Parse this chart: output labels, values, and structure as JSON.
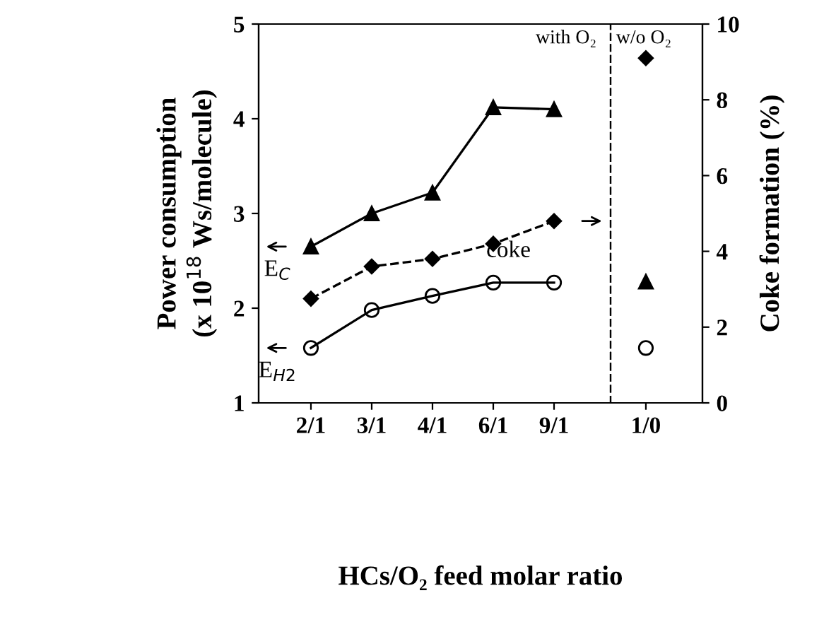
{
  "chart_data": [
    {
      "type": "line",
      "xlabel": "HCs/O₂ feed molar ratio",
      "ylabel": "Power consumption\n(x 10$^{18}$ Ws/molecule)",
      "categories": [
        "2/1",
        "3/1",
        "4/1",
        "6/1",
        "9/1"
      ],
      "ylim": [
        1,
        5
      ],
      "yticks": [
        1,
        2,
        3,
        4,
        5
      ],
      "y2lim": [
        0,
        10
      ],
      "series": [
        {
          "name": "E$_{C}$",
          "color": "#000000",
          "marker": "triangle",
          "line_style": "solid",
          "values": [
            2.65,
            3.0,
            3.22,
            4.12,
            4.1
          ]
        },
        {
          "name": "E$_{H2}$",
          "color": "#000000",
          "marker": "circle",
          "line_style": "solid",
          "values": [
            1.58,
            1.98,
            2.13,
            2.27,
            2.27
          ]
        },
        {
          "name": "coke",
          "color": "#000000",
          "marker": "diamond",
          "line_style": "dashed",
          "axis": "y2",
          "values": [
            2.75,
            3.6,
            3.8,
            4.2,
            4.8
          ]
        }
      ],
      "annotations": [
        "with O₂"
      ],
      "grid": false,
      "legend": "left"
    },
    {
      "type": "line",
      "y2label": "Coke formation (%)",
      "categories": [
        "1/0"
      ],
      "ylim": [
        1,
        5
      ],
      "y2lim": [
        0,
        10
      ],
      "y2ticks": [
        0,
        2,
        4,
        6,
        8,
        10
      ],
      "series": [
        {
          "color": "#000000",
          "marker": "triangle",
          "values": [
            2.28
          ]
        },
        {
          "color": "#000000",
          "marker": "circle",
          "values": [
            1.58
          ]
        },
        {
          "color": "#000000",
          "marker": "diamond",
          "axis": "y2",
          "values": [
            9.1
          ]
        }
      ],
      "annotations": [
        "w/o O₂"
      ],
      "grid": false
    }
  ]
}
